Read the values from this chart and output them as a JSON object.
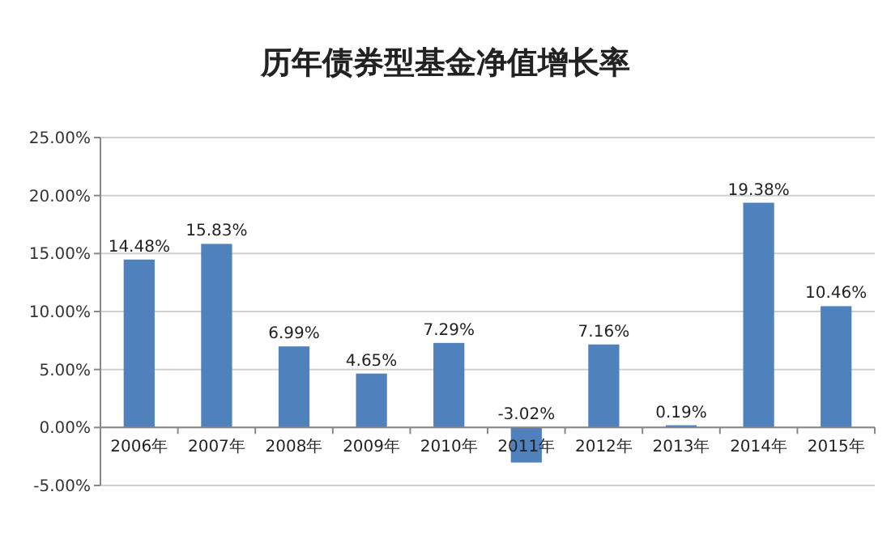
{
  "chart_data": {
    "type": "bar",
    "title": "历年债券型基金净值增长率",
    "categories": [
      "2006年",
      "2007年",
      "2008年",
      "2009年",
      "2010年",
      "2011年",
      "2012年",
      "2013年",
      "2014年",
      "2015年"
    ],
    "values": [
      14.48,
      15.83,
      6.99,
      4.65,
      7.29,
      -3.02,
      7.16,
      0.19,
      19.38,
      10.46
    ],
    "value_labels": [
      "14.48%",
      "15.83%",
      "6.99%",
      "4.65%",
      "7.29%",
      "-3.02%",
      "7.16%",
      "0.19%",
      "19.38%",
      "10.46%"
    ],
    "color": "#4f81bd",
    "ylim": [
      -5,
      25
    ],
    "yticks": [
      {
        "value": -5,
        "label": "-5.00%"
      },
      {
        "value": 0,
        "label": "0.00%"
      },
      {
        "value": 5,
        "label": "5.00%"
      },
      {
        "value": 10,
        "label": "10.00%"
      },
      {
        "value": 15,
        "label": "15.00%"
      },
      {
        "value": 20,
        "label": "20.00%"
      },
      {
        "value": 25,
        "label": "25.00%"
      }
    ],
    "grid": true
  }
}
